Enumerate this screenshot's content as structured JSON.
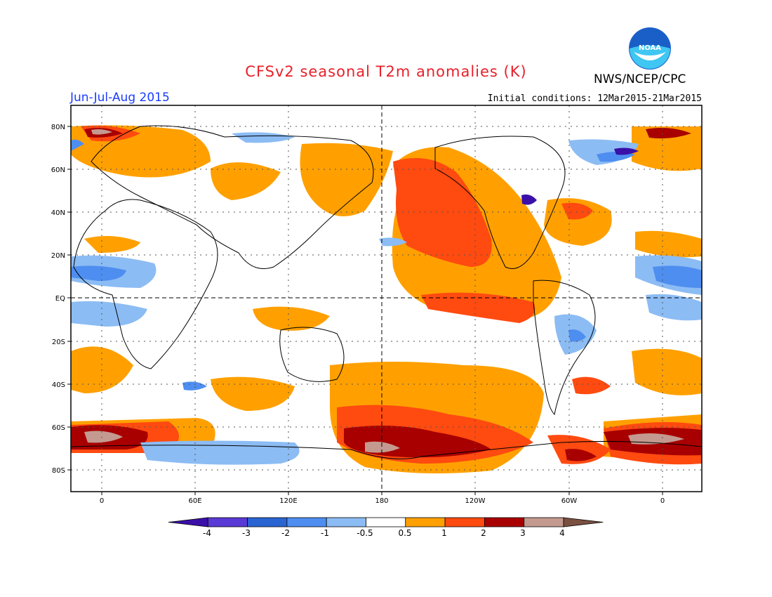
{
  "header": {
    "title": "CFSv2 seasonal T2m anomalies (K)",
    "agency": "NWS/NCEP/CPC",
    "season": "Jun-Jul-Aug 2015",
    "initial_conditions": "Initial conditions: 12Mar2015-21Mar2015",
    "logo_text": "NOAA"
  },
  "axes": {
    "lat_labels": [
      "80N",
      "60N",
      "40N",
      "20N",
      "EQ",
      "20S",
      "40S",
      "60S",
      "80S"
    ],
    "lon_labels": [
      "0",
      "60E",
      "120E",
      "180",
      "120W",
      "60W",
      "0"
    ]
  },
  "colorbar": {
    "labels": [
      "-4",
      "-3",
      "-2",
      "-1",
      "-0.5",
      "0.5",
      "1",
      "2",
      "3",
      "4"
    ],
    "colors": [
      "#3a10a8",
      "#5a3ad6",
      "#2a64d2",
      "#4e8ef0",
      "#8cbcf4",
      "#ffffff",
      "#ffa000",
      "#ff4a10",
      "#a80000",
      "#c49a90",
      "#7a5040"
    ]
  },
  "colors": {
    "title": "#e8202a",
    "season": "#1a3cff",
    "warm1": "#ffa000",
    "warm2": "#ff4a10",
    "warm3": "#a80000",
    "warm4": "#c49a90",
    "cool1": "#8cbcf4",
    "cool2": "#4e8ef0",
    "cool3": "#2a64d2",
    "cool4": "#3a10a8"
  }
}
